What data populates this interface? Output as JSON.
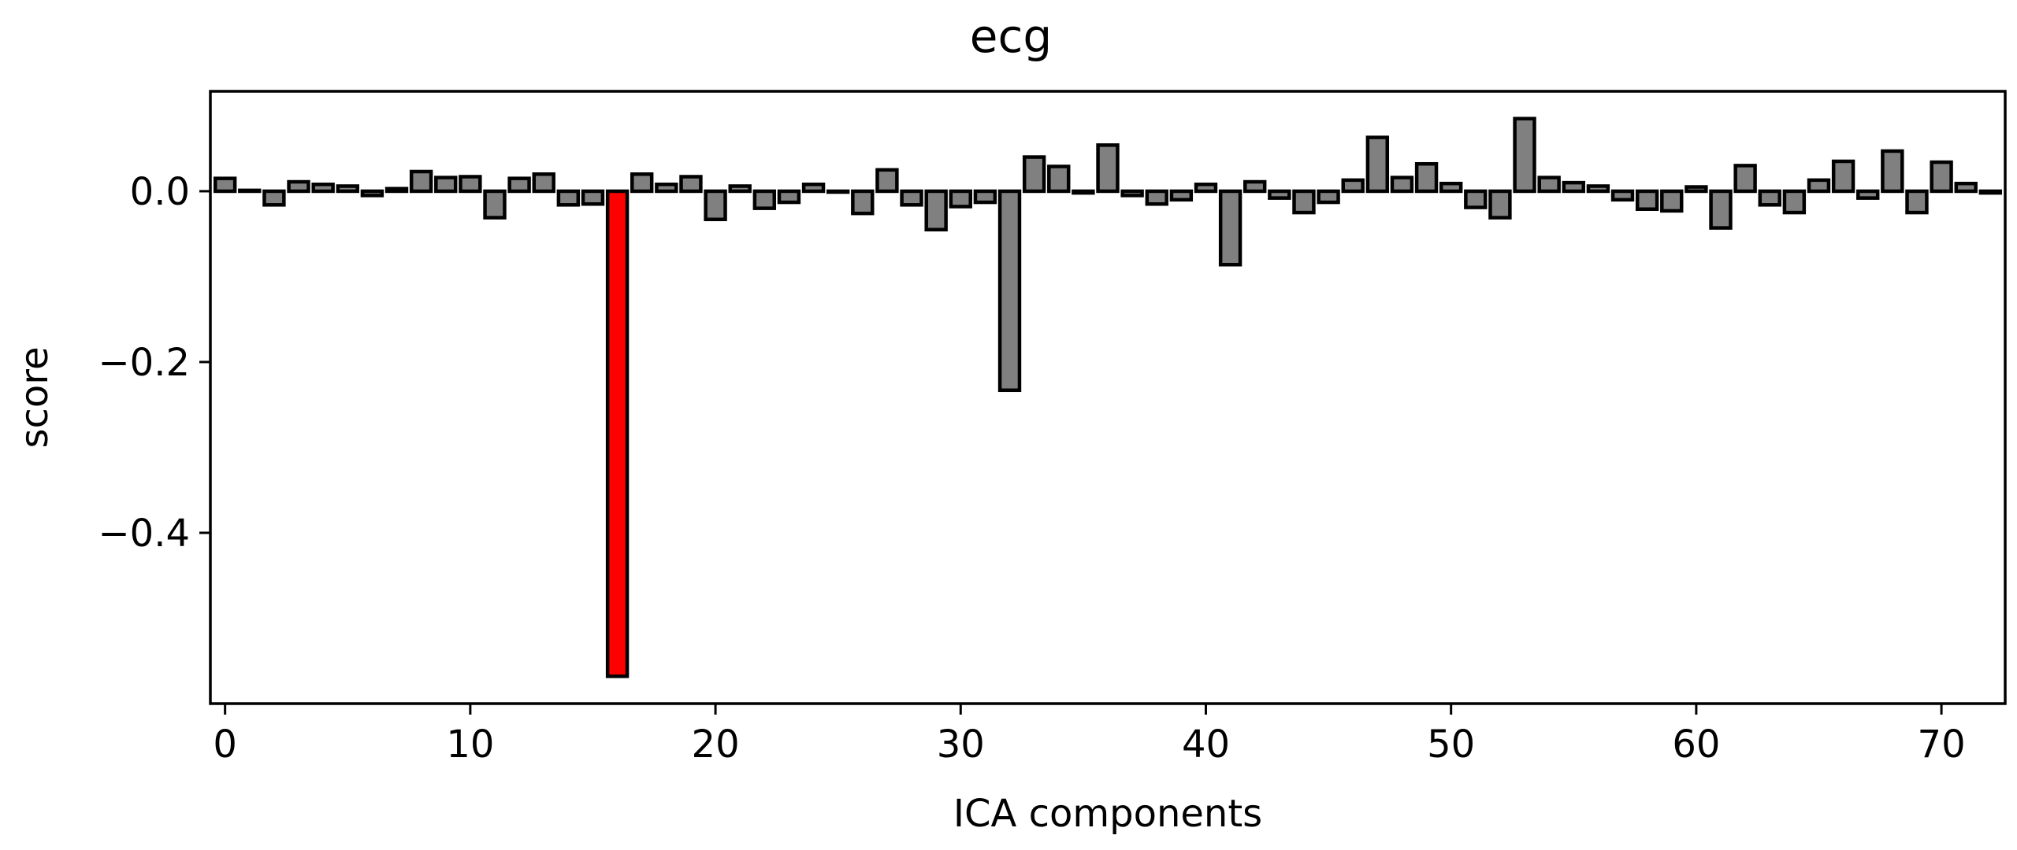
{
  "chart_data": {
    "type": "bar",
    "title": "ecg",
    "xlabel": "ICA components",
    "ylabel": "score",
    "xlim": [
      -0.6,
      72.6
    ],
    "ylim": [
      -0.6,
      0.117
    ],
    "xticks": [
      0,
      10,
      20,
      30,
      40,
      50,
      60,
      70
    ],
    "xtick_labels": [
      "0",
      "10",
      "20",
      "30",
      "40",
      "50",
      "60",
      "70"
    ],
    "yticks": [
      0.0,
      -0.2,
      -0.4
    ],
    "ytick_labels": [
      "0.0",
      "−0.2",
      "−0.4"
    ],
    "grid": false,
    "colors": {
      "default": "#808080",
      "highlight": "#ff0000",
      "edge": "#000000"
    },
    "highlight_indices": [
      16
    ],
    "values": [
      0.015,
      0.001,
      -0.016,
      0.011,
      0.008,
      0.006,
      -0.005,
      0.003,
      0.023,
      0.016,
      0.017,
      -0.031,
      0.015,
      0.02,
      -0.016,
      -0.015,
      -0.568,
      0.02,
      0.008,
      0.017,
      -0.033,
      0.006,
      -0.02,
      -0.013,
      0.008,
      -0.001,
      -0.026,
      0.025,
      -0.016,
      -0.045,
      -0.018,
      -0.013,
      -0.233,
      0.04,
      0.029,
      -0.002,
      0.054,
      -0.005,
      -0.015,
      -0.01,
      0.008,
      -0.086,
      0.011,
      -0.008,
      -0.025,
      -0.013,
      0.013,
      0.063,
      0.016,
      0.032,
      0.009,
      -0.019,
      -0.031,
      0.085,
      0.016,
      0.01,
      0.006,
      -0.01,
      -0.021,
      -0.023,
      0.005,
      -0.043,
      0.03,
      -0.016,
      -0.025,
      0.013,
      0.035,
      -0.008,
      0.047,
      -0.025,
      0.034,
      0.009,
      -0.002
    ]
  }
}
